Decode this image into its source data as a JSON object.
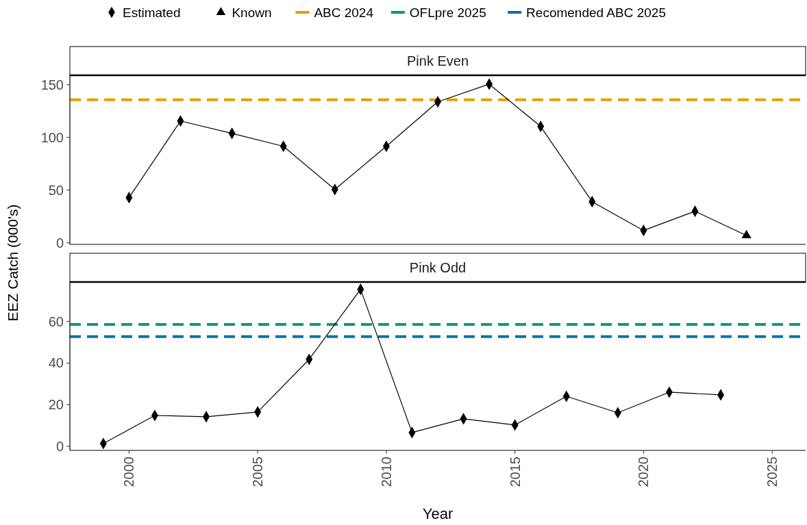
{
  "chart_data": [
    {
      "type": "line",
      "title": "Pink Even",
      "ylabel": "EEZ Catch (000's)",
      "xlim": [
        1997.7,
        2026.3
      ],
      "ylim": [
        -1.5,
        159
      ],
      "yticks": [
        0,
        50,
        100,
        150
      ],
      "tick_labels": "y",
      "legend": "top",
      "grid": false,
      "series": [
        {
          "color": "#000000",
          "marker": "none",
          "x": [
            2000,
            2002,
            2004,
            2006,
            2008,
            2010,
            2012,
            2014,
            2016,
            2018,
            2020,
            2022,
            2024
          ],
          "values": [
            42.9,
            115.6,
            103.9,
            91.6,
            50.6,
            91.6,
            133.8,
            150.6,
            110.4,
            39,
            11.7,
            29.9,
            7
          ]
        },
        {
          "type": "scatter",
          "name": "Estimated",
          "color": "#000000",
          "marker": "diamond",
          "x": [
            2000,
            2002,
            2004,
            2006,
            2008,
            2010,
            2012,
            2014,
            2016,
            2018,
            2020,
            2022
          ],
          "values": [
            42.9,
            115.6,
            103.9,
            91.6,
            50.6,
            91.6,
            133.8,
            150.6,
            110.4,
            39,
            11.7,
            29.9
          ]
        },
        {
          "type": "scatter",
          "name": "Known",
          "color": "#000000",
          "marker": "triangle",
          "x": [
            2024
          ],
          "values": [
            7
          ]
        }
      ],
      "ref_lines": [
        {
          "axis": "y",
          "value": 135.7,
          "label": "ABC 2024",
          "color": "#e69f00",
          "line_style": "dashed"
        }
      ]
    },
    {
      "type": "line",
      "title": "Pink Odd",
      "xlabel": "Year",
      "xlim": [
        1997.7,
        2026.3
      ],
      "ylim": [
        -2,
        79
      ],
      "xticks": [
        2000,
        2005,
        2010,
        2015,
        2020,
        2025
      ],
      "yticks": [
        0,
        20,
        40,
        60
      ],
      "grid": false,
      "legend": "top",
      "series": [
        {
          "color": "#000000",
          "marker": "none",
          "x": [
            1999,
            2001,
            2003,
            2005,
            2007,
            2009,
            2011,
            2013,
            2015,
            2017,
            2019,
            2021,
            2023
          ],
          "values": [
            1.3,
            14.8,
            14.2,
            16.5,
            41.8,
            75.5,
            6.6,
            13.2,
            10.2,
            24,
            16.1,
            26,
            24.7
          ]
        },
        {
          "type": "scatter",
          "color": "#000000",
          "marker": "diamond",
          "x": [
            1999,
            2001,
            2003,
            2005,
            2007,
            2009,
            2011,
            2013,
            2015,
            2017,
            2019,
            2021,
            2023
          ],
          "values": [
            1.3,
            14.8,
            14.2,
            16.5,
            41.8,
            75.5,
            6.6,
            13.2,
            10.2,
            24,
            16.1,
            26,
            24.7
          ]
        }
      ],
      "ref_lines": [
        {
          "axis": "y",
          "value": 58.6,
          "label": "OFLpre 2025",
          "color": "#009e73",
          "line_style": "dashed"
        },
        {
          "axis": "y",
          "value": 52.7,
          "label": "Recomended ABC 2025",
          "color": "#0072b2",
          "line_style": "dashed"
        }
      ]
    }
  ]
}
